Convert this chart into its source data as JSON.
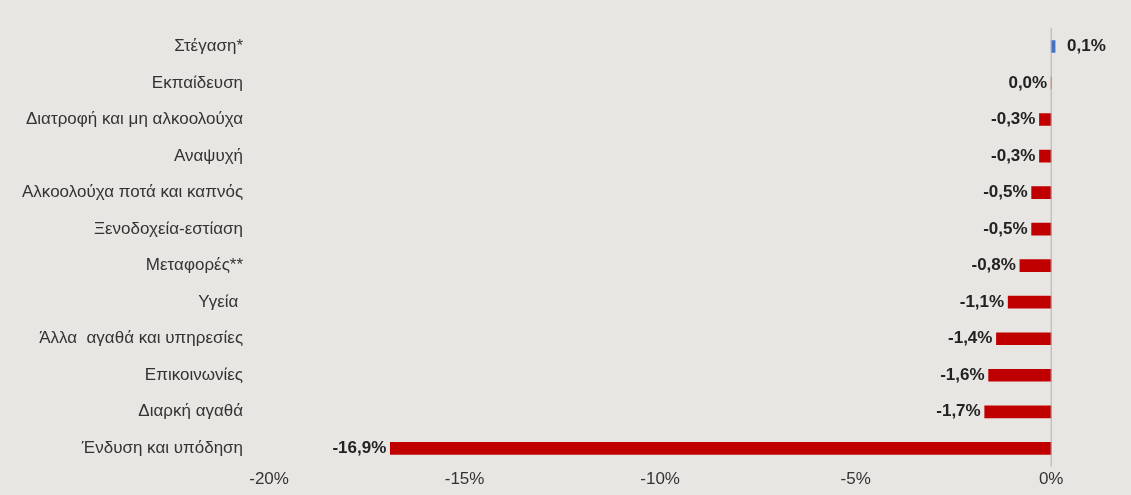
{
  "chart_data": {
    "type": "bar",
    "orientation": "horizontal",
    "categories": [
      "Στέγαση*",
      "Εκπαίδευση",
      "Διατροφή και μη αλκοολούχα",
      "Αναψυχή",
      "Αλκοολούχα ποτά και καπνός",
      "Ξενοδοχεία-εστίαση",
      "Μεταφορές**",
      "Υγεία ",
      "Άλλα  αγαθά και υπηρεσίες",
      "Επικοινωνίες",
      "Διαρκή αγαθά",
      "Ένδυση και υπόδηση"
    ],
    "values": [
      0.1,
      0.0,
      -0.3,
      -0.3,
      -0.5,
      -0.5,
      -0.8,
      -1.1,
      -1.4,
      -1.6,
      -1.7,
      -16.9
    ],
    "colors": [
      "#4472c4",
      "#c00000",
      "#c00000",
      "#c00000",
      "#c00000",
      "#c00000",
      "#c00000",
      "#c00000",
      "#c00000",
      "#c00000",
      "#c00000",
      "#c00000"
    ],
    "value_labels": [
      "0,1%",
      "0,0%",
      "-0,3%",
      "-0,3%",
      "-0,5%",
      "-0,5%",
      "-0,8%",
      "-1,1%",
      "-1,4%",
      "-1,6%",
      "-1,7%",
      "-16,9%"
    ],
    "xlim": [
      -20,
      0.2
    ],
    "xticks": [
      {
        "value": -20,
        "label": "-20%"
      },
      {
        "value": -15,
        "label": "-15%"
      },
      {
        "value": -10,
        "label": "-10%"
      },
      {
        "value": -5,
        "label": "-5%"
      },
      {
        "value": 0,
        "label": "0%"
      }
    ],
    "ref_lines": [
      {
        "axis": "x",
        "value": 0,
        "color": "#b0b0b0"
      }
    ],
    "grid": false,
    "legend": false
  }
}
